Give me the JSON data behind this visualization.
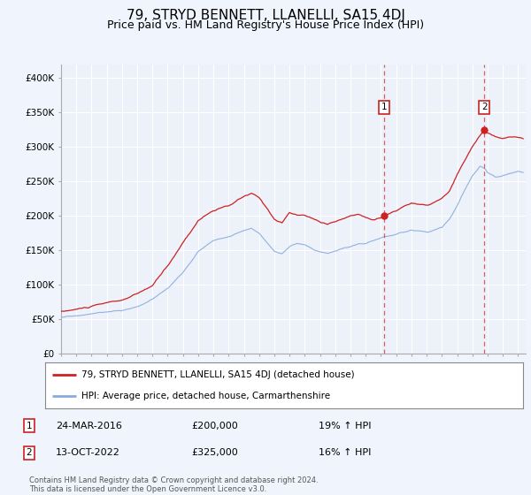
{
  "title": "79, STRYD BENNETT, LLANELLI, SA15 4DJ",
  "subtitle": "Price paid vs. HM Land Registry's House Price Index (HPI)",
  "title_fontsize": 11,
  "subtitle_fontsize": 9,
  "background_color": "#f0f4fc",
  "plot_bg_color": "#edf1f9",
  "red_color": "#cc2222",
  "blue_color": "#88aadd",
  "marker1_date_str": "24-MAR-2016",
  "marker1_price": "£200,000",
  "marker1_hpi": "19% ↑ HPI",
  "marker2_date_str": "13-OCT-2022",
  "marker2_price": "£325,000",
  "marker2_hpi": "16% ↑ HPI",
  "legend_line1": "79, STRYD BENNETT, LLANELLI, SA15 4DJ (detached house)",
  "legend_line2": "HPI: Average price, detached house, Carmarthenshire",
  "footer": "Contains HM Land Registry data © Crown copyright and database right 2024.\nThis data is licensed under the Open Government Licence v3.0.",
  "ylim": [
    0,
    420000
  ],
  "yticks": [
    0,
    50000,
    100000,
    150000,
    200000,
    250000,
    300000,
    350000,
    400000
  ],
  "ytick_labels": [
    "£0",
    "£50K",
    "£100K",
    "£150K",
    "£200K",
    "£250K",
    "£300K",
    "£350K",
    "£400K"
  ]
}
